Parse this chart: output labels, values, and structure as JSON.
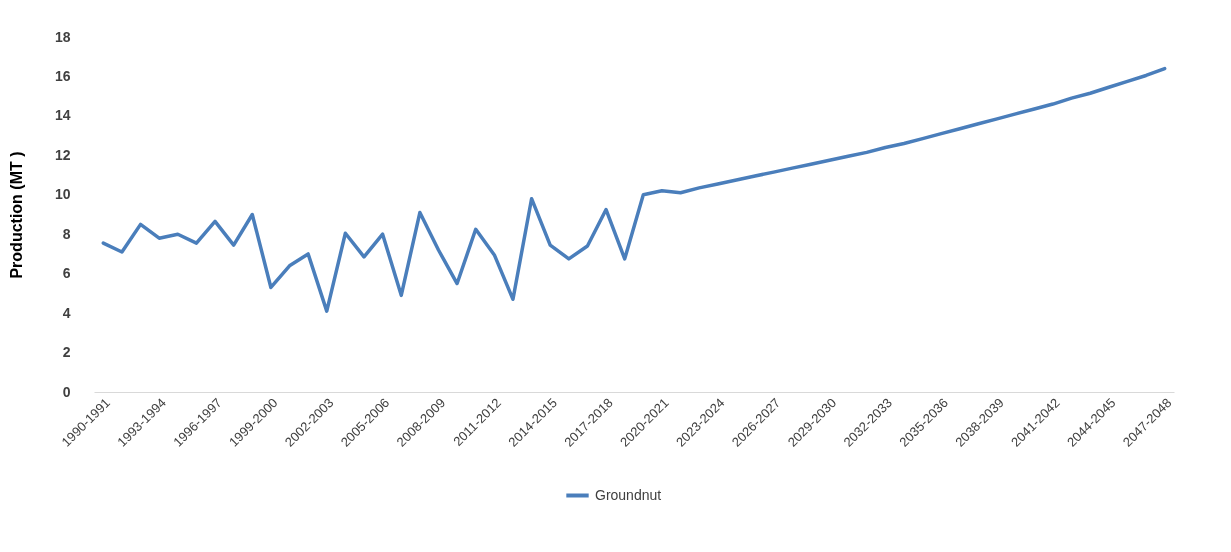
{
  "chart_data": {
    "type": "line",
    "ylabel": "Production (MT )",
    "categories": [
      "1990-1991",
      null,
      null,
      "1993-1994",
      null,
      null,
      "1996-1997",
      null,
      null,
      "1999-2000",
      null,
      null,
      "2002-2003",
      null,
      null,
      "2005-2006",
      null,
      null,
      "2008-2009",
      null,
      null,
      "2011-2012",
      null,
      null,
      "2014-2015",
      null,
      null,
      "2017-2018",
      null,
      null,
      "2020-2021",
      null,
      null,
      "2023-2024",
      null,
      null,
      "2026-2027",
      null,
      null,
      "2029-2030",
      null,
      null,
      "2032-2033",
      null,
      null,
      "2035-2036",
      null,
      null,
      "2038-2039",
      null,
      null,
      "2041-2042",
      null,
      null,
      "2044-2045",
      null,
      null,
      "2047-2048"
    ],
    "series": [
      {
        "name": "Groundnut",
        "color": "#4a7ebb",
        "values": [
          7.55,
          7.1,
          8.5,
          7.8,
          8.0,
          7.55,
          8.65,
          7.45,
          9.0,
          5.3,
          6.4,
          7.0,
          4.1,
          8.05,
          6.85,
          8.0,
          4.9,
          9.1,
          7.2,
          5.5,
          8.25,
          6.95,
          4.7,
          9.8,
          7.45,
          6.75,
          7.4,
          9.25,
          6.75,
          10.0,
          10.2,
          10.1,
          10.35,
          10.55,
          10.75,
          10.95,
          11.15,
          11.35,
          11.55,
          11.75,
          11.95,
          12.15,
          12.4,
          12.6,
          12.85,
          13.1,
          13.35,
          13.6,
          13.85,
          14.1,
          14.35,
          14.6,
          14.9,
          15.15,
          15.45,
          15.75,
          16.05,
          16.4
        ]
      }
    ],
    "ylim": [
      0,
      18
    ],
    "yticks": [
      0,
      2,
      4,
      6,
      8,
      10,
      12,
      14,
      16,
      18
    ],
    "grid": false,
    "legend": "bottom",
    "marker": "none",
    "line_style": "solid"
  }
}
